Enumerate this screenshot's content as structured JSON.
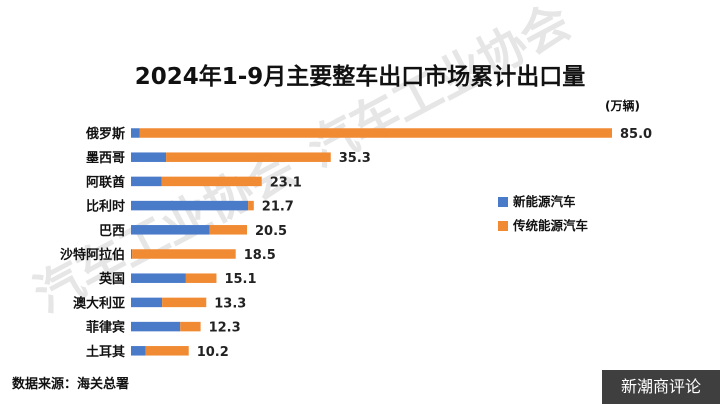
{
  "chart_data": {
    "type": "bar",
    "orientation": "horizontal",
    "stacked": true,
    "title": "2024年1-9月主要整车出口市场累计出口量",
    "unit": "(万辆)",
    "categories": [
      "俄罗斯",
      "墨西哥",
      "阿联酋",
      "比利时",
      "巴西",
      "沙特阿拉伯",
      "英国",
      "澳大利亚",
      "菲律宾",
      "土耳其"
    ],
    "series": [
      {
        "name": "新能源汽车",
        "color": "#4a7bc9",
        "values": [
          1.5,
          6.2,
          5.4,
          20.7,
          13.9,
          0.2,
          9.7,
          5.5,
          8.7,
          2.6
        ]
      },
      {
        "name": "传统能源汽车",
        "color": "#f08a33",
        "values": [
          83.5,
          29.1,
          17.7,
          1.0,
          6.6,
          18.3,
          5.4,
          7.8,
          3.6,
          7.6
        ]
      }
    ],
    "totals": [
      "85.0",
      "35.3",
      "23.1",
      "21.7",
      "20.5",
      "18.5",
      "15.1",
      "13.3",
      "12.3",
      "10.2"
    ],
    "xlim": [
      0,
      85
    ],
    "grid": false,
    "legend_position": "right"
  },
  "source": "数据来源：海关总署",
  "brand": "新潮商评论",
  "watermark": "汽车工业协会"
}
